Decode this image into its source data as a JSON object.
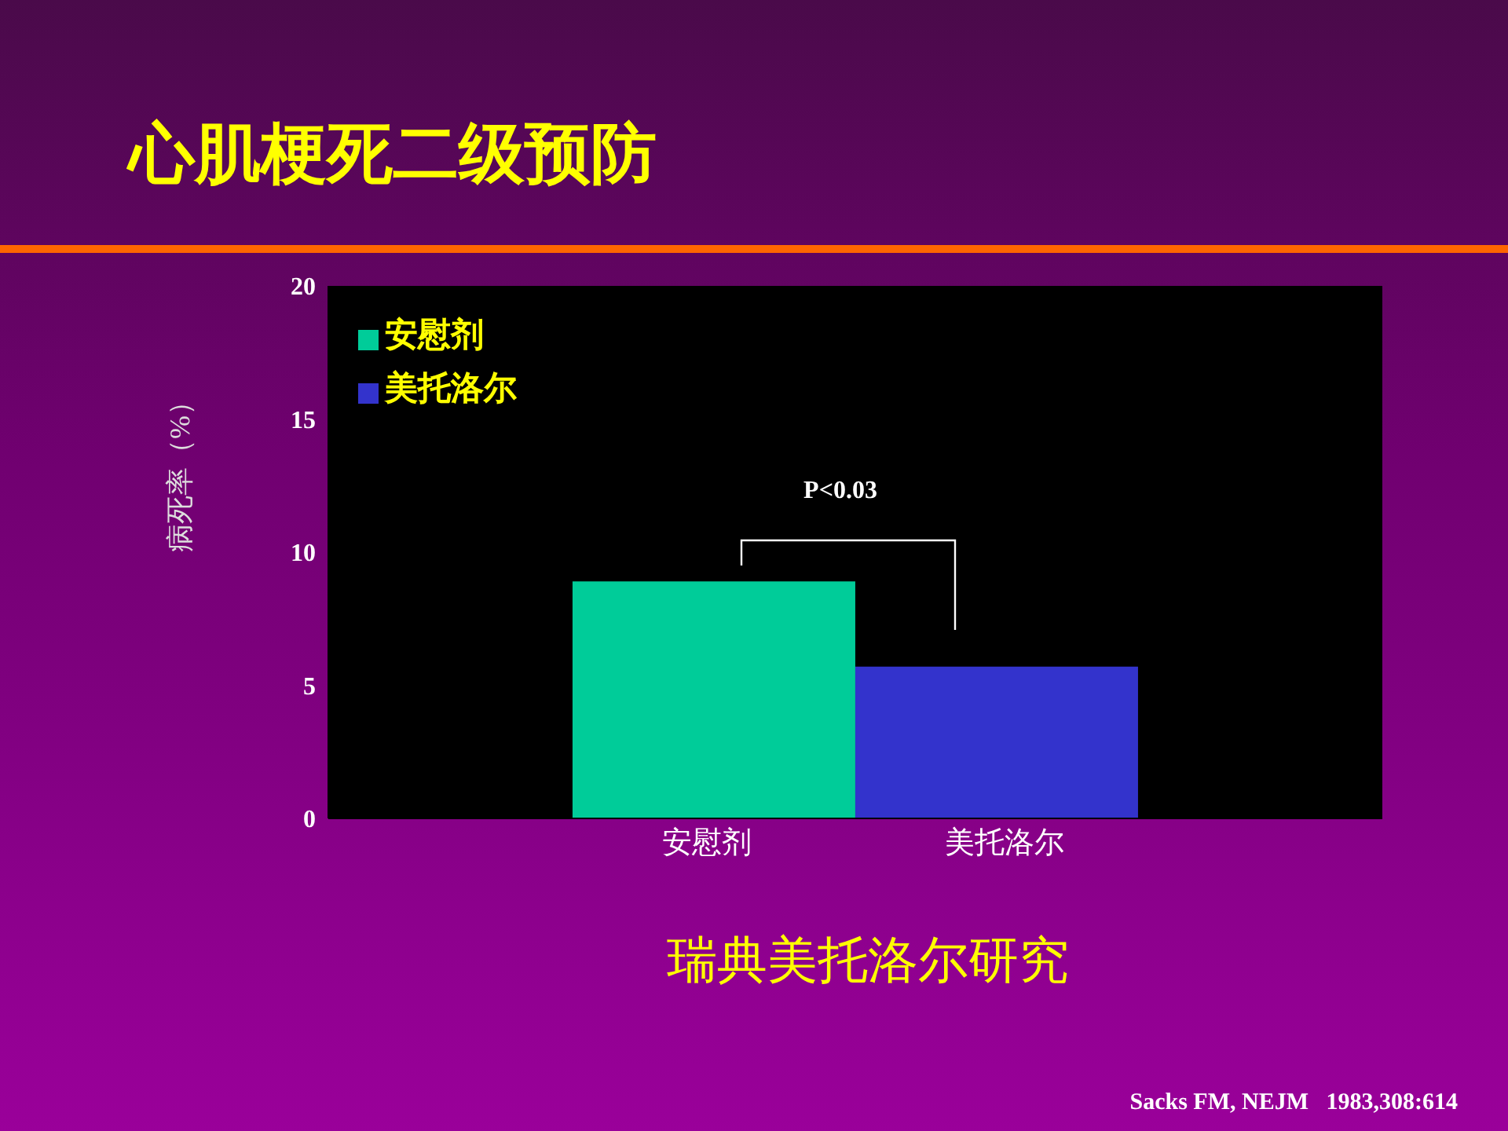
{
  "chart_data": {
    "type": "bar",
    "title": "心肌梗死二级预防",
    "subtitle": "瑞典美托洛尔研究",
    "ylabel": "病死率（%）",
    "categories": [
      "安慰剂",
      "美托洛尔"
    ],
    "series": [
      {
        "name": "安慰剂",
        "color": "#00cc99",
        "values": [
          8.9,
          null
        ]
      },
      {
        "name": "美托洛尔",
        "color": "#3333cc",
        "values": [
          null,
          5.7
        ]
      }
    ],
    "ylim": [
      0,
      20
    ],
    "yticks": [
      0,
      5,
      10,
      15,
      20
    ],
    "legend": "top left",
    "annotations": [
      "P<0.03",
      "Sacks FM, NEJM   1983,308:614"
    ]
  }
}
